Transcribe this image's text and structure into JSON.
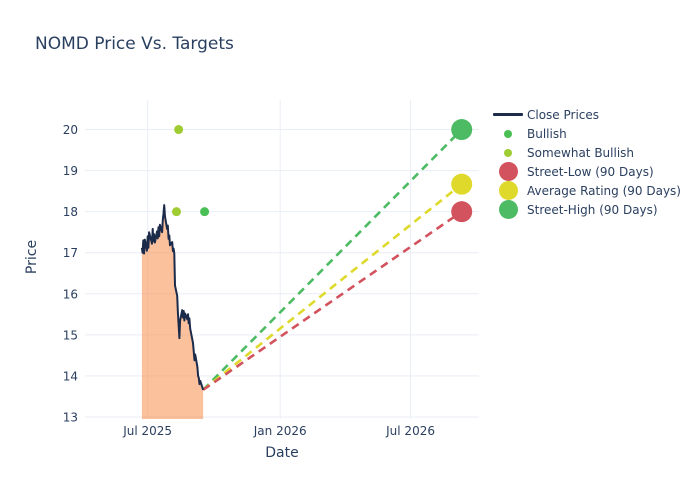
{
  "title": "NOMD Price Vs. Targets",
  "colors": {
    "title_text": "#2a3f5f",
    "axis_text": "#2a3f5f",
    "grid": "#e9eef6",
    "close_line": "#1c2b4a",
    "close_fill": "rgba(248,150,90,0.6)",
    "bullish": "#4abf53",
    "somewhat_bullish": "#9fcc33",
    "street_low": "#d2525d",
    "average_rating": "#ded92b",
    "street_high": "#4dbb63"
  },
  "legend": {
    "items": [
      {
        "label": "Close Prices",
        "marker": "line",
        "color_key": "close_line"
      },
      {
        "label": "Bullish",
        "marker": "dot-s",
        "color_key": "bullish"
      },
      {
        "label": "Somewhat Bullish",
        "marker": "dot-s",
        "color_key": "somewhat_bullish"
      },
      {
        "label": "Street-Low (90 Days)",
        "marker": "dot-l",
        "color_key": "street_low"
      },
      {
        "label": "Average Rating (90 Days)",
        "marker": "dot-l",
        "color_key": "average_rating"
      },
      {
        "label": "Street-High (90 Days)",
        "marker": "dot-l",
        "color_key": "street_high"
      }
    ]
  },
  "chart_data": {
    "type": "line",
    "title": "NOMD Price Vs. Targets",
    "xlabel": "Date",
    "ylabel": "Price",
    "x_axis": {
      "ticks": [
        {
          "label": "Jul 2025",
          "date": "2025-07-01"
        },
        {
          "label": "Jan 2026",
          "date": "2026-01-01"
        },
        {
          "label": "Jul 2026",
          "date": "2026-07-01"
        }
      ],
      "range": [
        "2025-04-05",
        "2026-10-04"
      ]
    },
    "y_axis": {
      "ticks": [
        13,
        14,
        15,
        16,
        17,
        18,
        19,
        20
      ],
      "range": [
        12.95,
        20.72
      ]
    },
    "close_prices": {
      "name": "Close Prices",
      "dates": [
        "2025-06-23",
        "2025-06-24",
        "2025-06-25",
        "2025-06-26",
        "2025-06-27",
        "2025-06-30",
        "2025-07-01",
        "2025-07-02",
        "2025-07-03",
        "2025-07-07",
        "2025-07-08",
        "2025-07-09",
        "2025-07-10",
        "2025-07-11",
        "2025-07-14",
        "2025-07-15",
        "2025-07-16",
        "2025-07-17",
        "2025-07-18",
        "2025-07-21",
        "2025-07-22",
        "2025-07-23",
        "2025-07-24",
        "2025-07-25",
        "2025-07-28",
        "2025-07-29",
        "2025-07-30",
        "2025-07-31",
        "2025-08-01",
        "2025-08-04",
        "2025-08-05",
        "2025-08-06",
        "2025-08-07",
        "2025-08-08",
        "2025-08-11",
        "2025-08-12",
        "2025-08-13",
        "2025-08-14",
        "2025-08-15",
        "2025-08-18",
        "2025-08-19",
        "2025-08-20",
        "2025-08-21",
        "2025-08-22",
        "2025-08-25",
        "2025-08-26",
        "2025-08-27",
        "2025-08-28",
        "2025-08-29",
        "2025-09-02",
        "2025-09-03",
        "2025-09-04",
        "2025-09-05",
        "2025-09-08",
        "2025-09-09",
        "2025-09-10",
        "2025-09-11",
        "2025-09-12",
        "2025-09-15",
        "2025-09-16"
      ],
      "values": [
        17.12,
        17.0,
        17.3,
        16.98,
        17.32,
        17.05,
        17.4,
        17.12,
        17.5,
        17.22,
        17.58,
        17.28,
        17.45,
        17.25,
        17.52,
        17.35,
        17.62,
        17.4,
        17.68,
        17.5,
        17.8,
        17.95,
        18.16,
        17.88,
        17.58,
        17.66,
        17.34,
        17.42,
        17.18,
        17.26,
        17.04,
        17.1,
        16.98,
        16.2,
        15.95,
        15.55,
        15.25,
        14.92,
        15.35,
        15.6,
        15.42,
        15.58,
        15.35,
        15.52,
        15.38,
        15.5,
        15.28,
        15.4,
        15.15,
        14.8,
        14.58,
        14.38,
        14.52,
        14.22,
        14.0,
        13.95,
        13.8,
        13.88,
        13.72,
        13.66
      ]
    },
    "analyst_ratings": [
      {
        "rating": "Somewhat Bullish",
        "date": "2025-08-13",
        "price_target": 20,
        "color_key": "somewhat_bullish"
      },
      {
        "rating": "Somewhat Bullish",
        "date": "2025-08-10",
        "price_target": 18,
        "color_key": "somewhat_bullish"
      },
      {
        "rating": "Bullish",
        "date": "2025-09-18",
        "price_target": 18,
        "color_key": "bullish"
      }
    ],
    "price_targets_90_day": [
      {
        "name": "Street-High (90 Days)",
        "value": 20.0,
        "target_date": "2026-09-10",
        "color_key": "street_high"
      },
      {
        "name": "Average Rating (90 Days)",
        "value": 18.67,
        "target_date": "2026-09-10",
        "color_key": "average_rating"
      },
      {
        "name": "Street-Low (90 Days)",
        "value": 18.0,
        "target_date": "2026-09-10",
        "color_key": "street_low"
      }
    ]
  }
}
